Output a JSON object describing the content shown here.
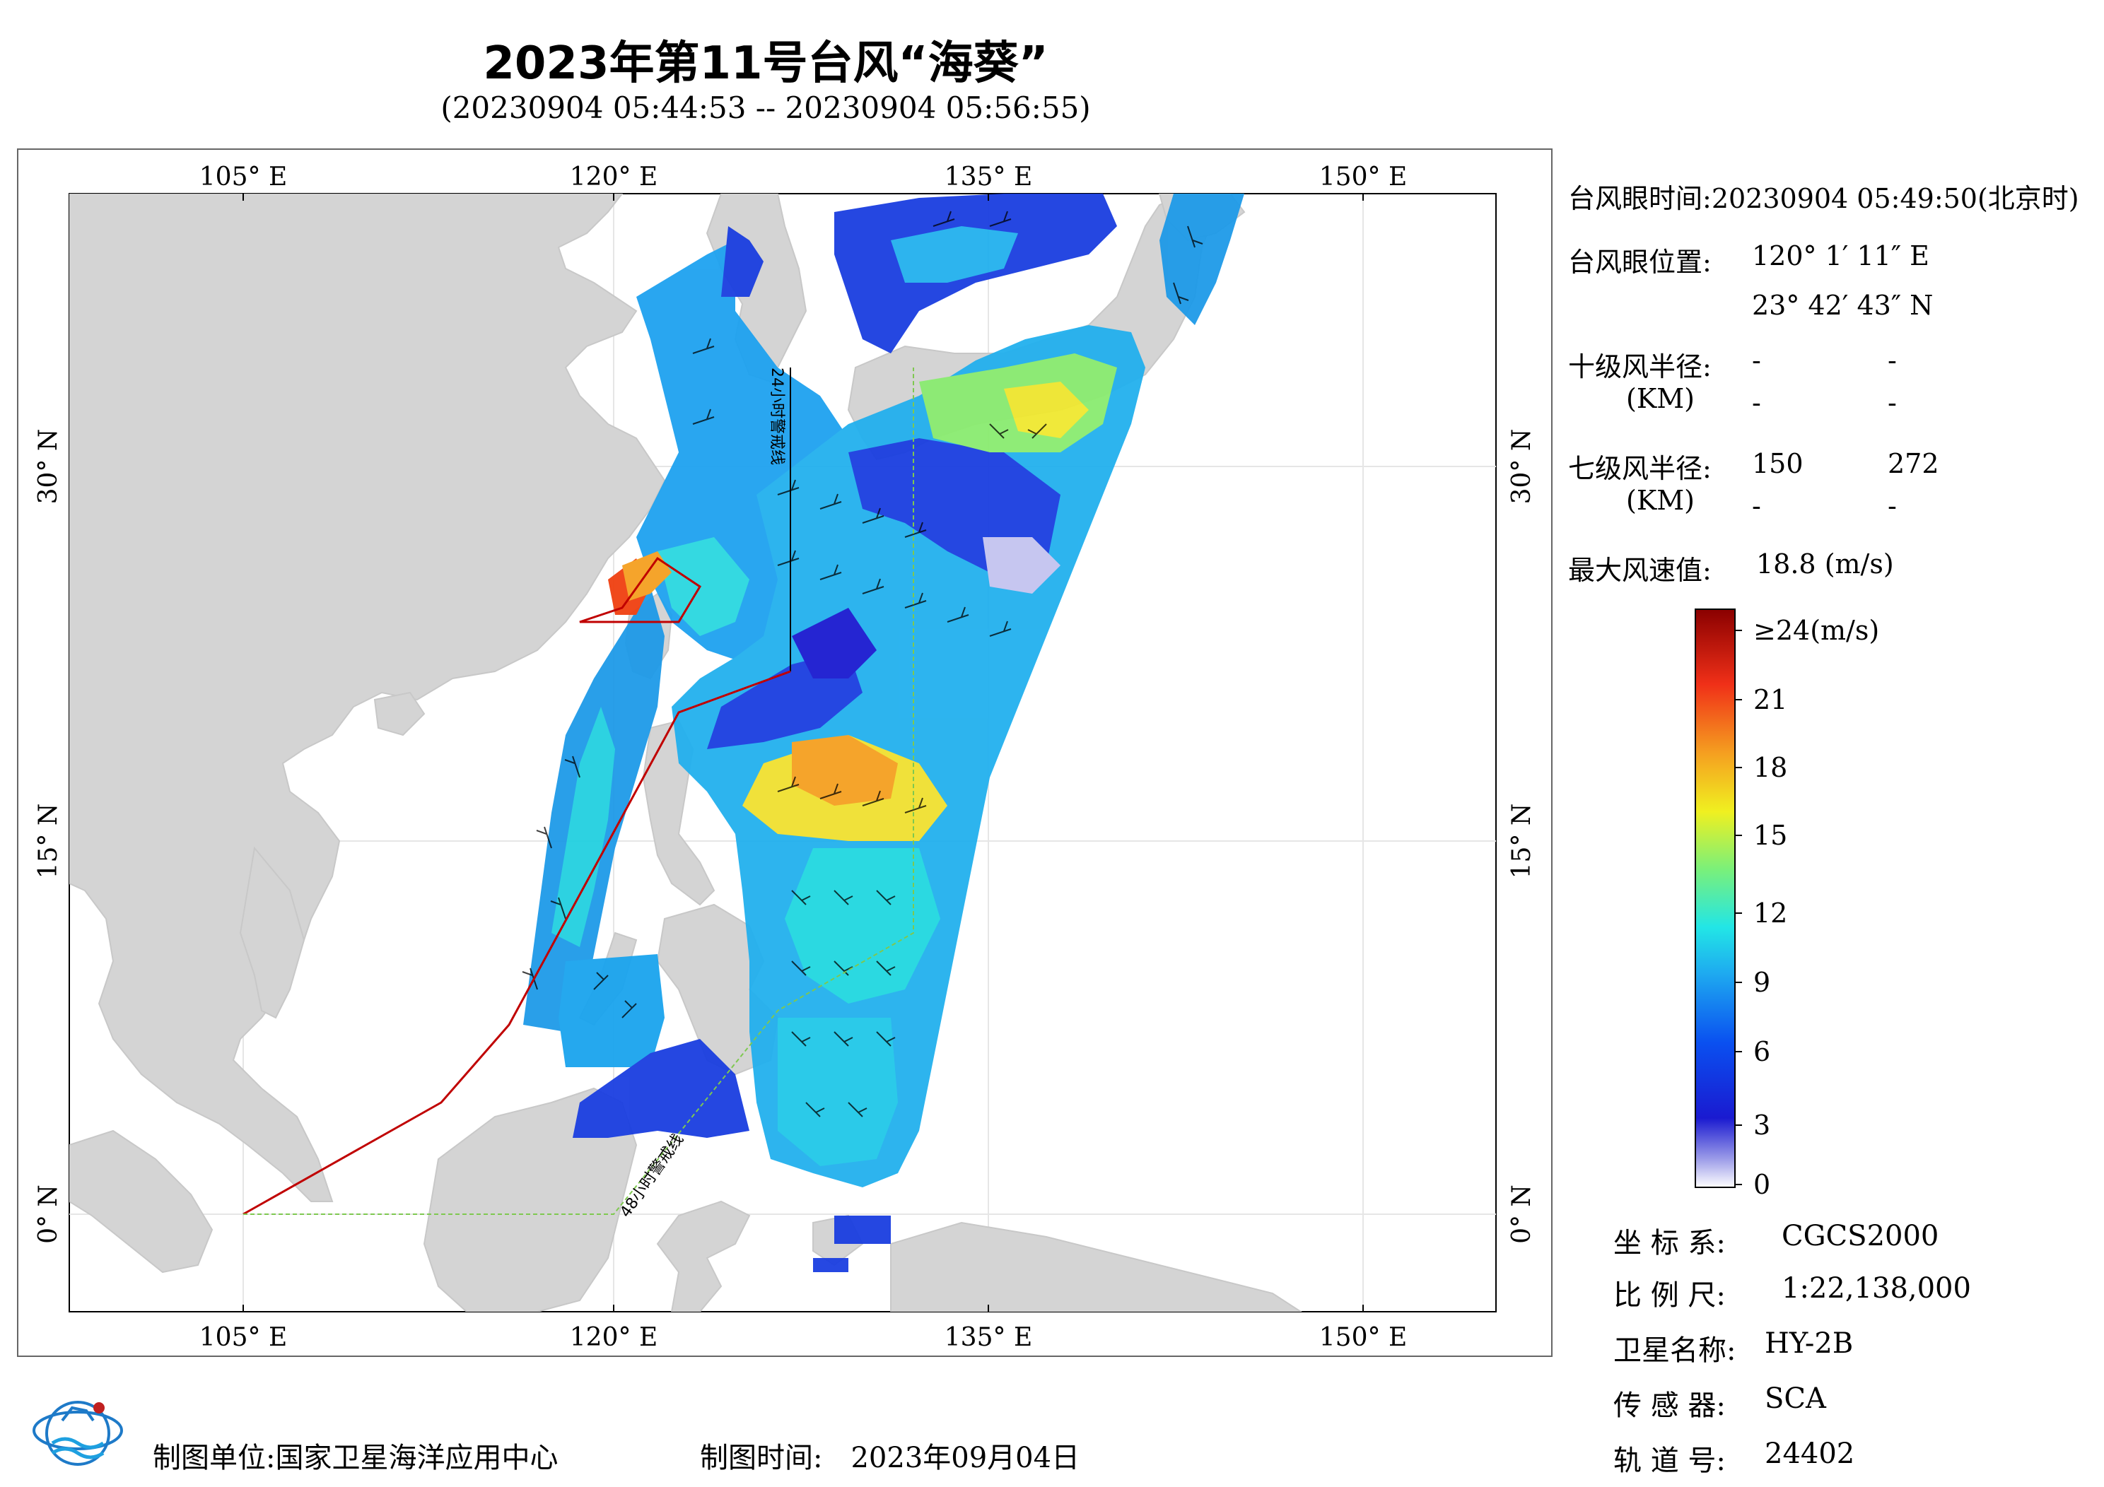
{
  "header": {
    "title": "2023年第11号台风“海葵”",
    "subtitle": "(20230904 05:44:53 -- 20230904 05:56:55)"
  },
  "map": {
    "lon_labels": [
      "105° E",
      "120° E",
      "135° E",
      "150° E"
    ],
    "lat_labels": [
      "30° N",
      "15° N",
      "0° N"
    ],
    "warning_24h_label": "24小时警戒线",
    "warning_48h_label": "48小时警戒线",
    "colors": {
      "land": "#d4d4d4",
      "sea": "#ffffff",
      "warning24": "#c00000",
      "warning48": "#7ec850",
      "grid": "#e6e6e6"
    }
  },
  "info": {
    "eye_time_label": "台风眼时间:",
    "eye_time_value": "20230904 05:49:50(北京时)",
    "eye_pos_label": "台风眼位置:",
    "eye_lon": "120° 1′ 11″ E",
    "eye_lat": "23° 42′ 43″ N",
    "r10_label": "十级风半径:",
    "r10_unit": "(KM)",
    "r10_values": [
      "-",
      "-",
      "-",
      "-"
    ],
    "r7_label": "七级风半径:",
    "r7_unit": "(KM)",
    "r7_values": [
      "150",
      "272",
      "-",
      "-"
    ],
    "max_wind_label": "最大风速值:",
    "max_wind_value": "18.8  (m/s)"
  },
  "colorbar": {
    "ticks": [
      "≥24(m/s)",
      "21",
      "18",
      "15",
      "12",
      "9",
      "6",
      "3",
      "0"
    ]
  },
  "meta": {
    "crs_label": "坐 标 系:",
    "crs_value": "CGCS2000",
    "scale_label": "比 例 尺:",
    "scale_value": "1:22,138,000",
    "satellite_label": "卫星名称:",
    "satellite_value": "HY-2B",
    "sensor_label": "传 感 器:",
    "sensor_value": "SCA",
    "orbit_label": "轨 道 号:",
    "orbit_value": "24402"
  },
  "footer": {
    "producer_label": "制图单位:",
    "producer_value": "国家卫星海洋应用中心",
    "time_label": "制图时间:",
    "time_value": "2023年09月04日"
  }
}
